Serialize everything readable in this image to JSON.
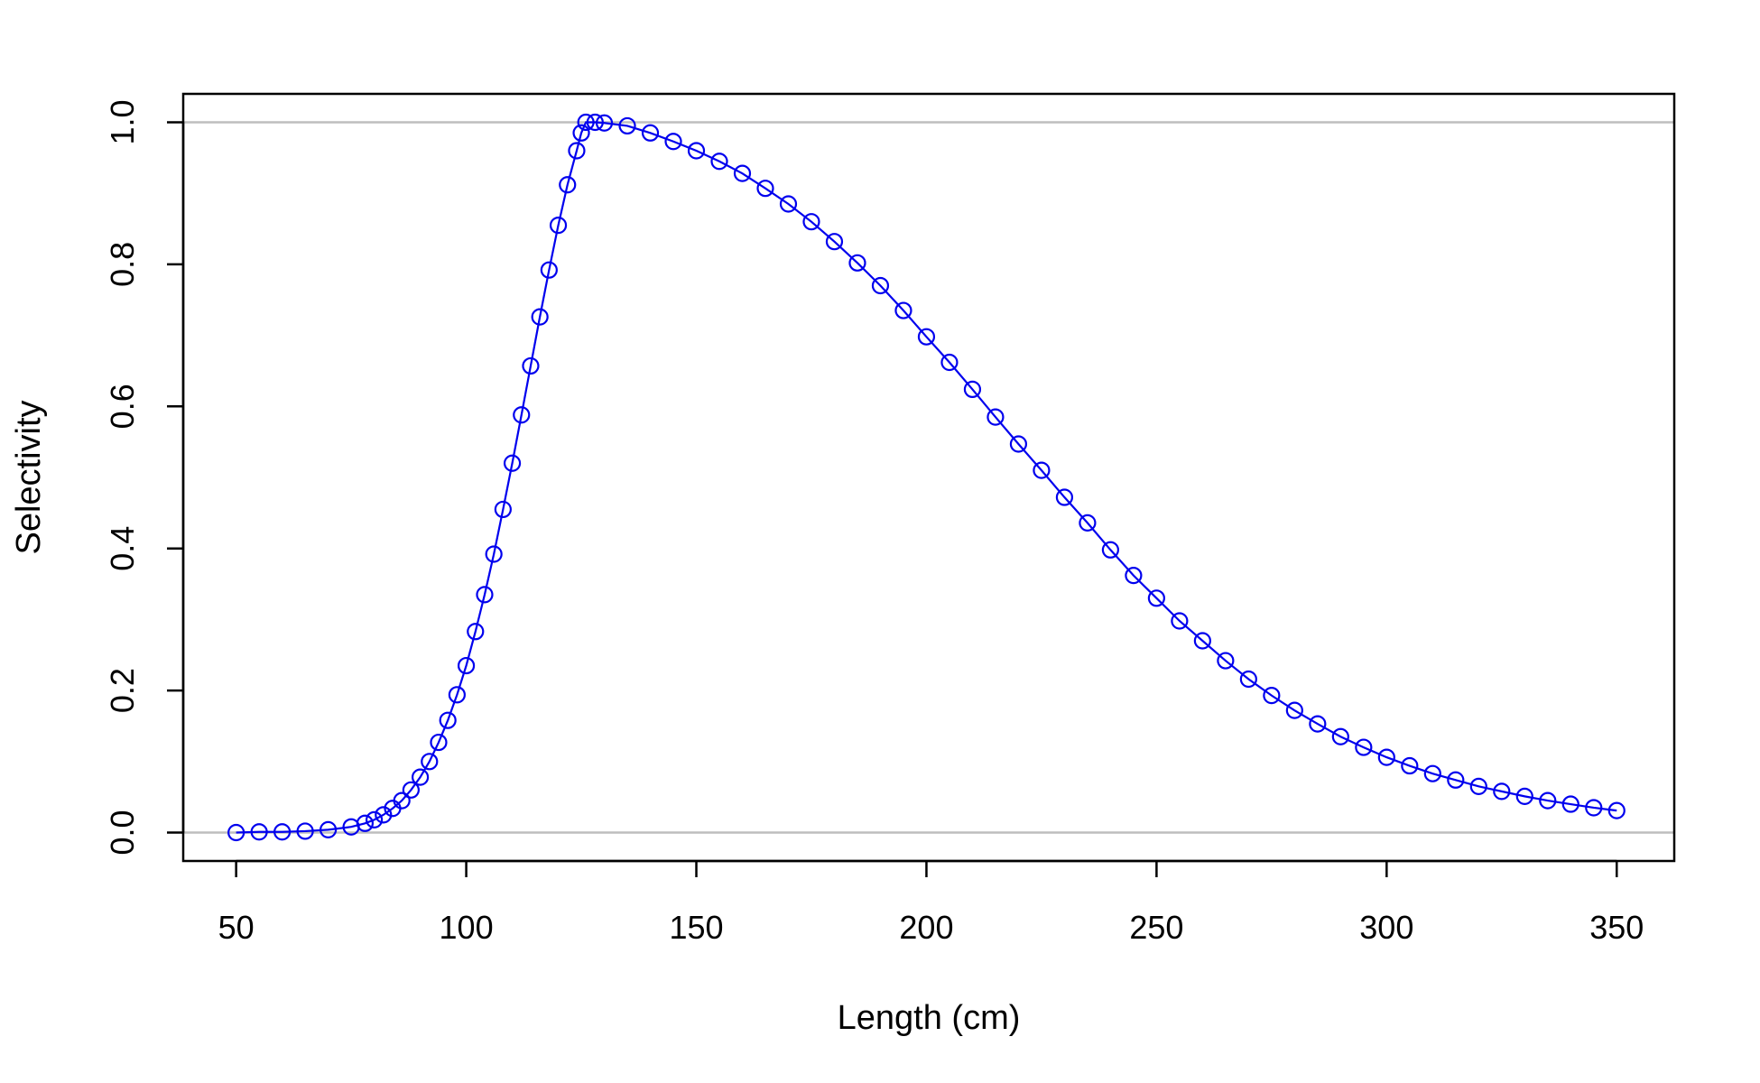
{
  "chart_data": {
    "type": "scatter",
    "title": "",
    "xlabel": "Length (cm)",
    "ylabel": "Selectivity",
    "xlim": [
      38.5,
      362.5
    ],
    "ylim": [
      -0.04,
      1.04
    ],
    "x_ticks": [
      50,
      100,
      150,
      200,
      250,
      300,
      350
    ],
    "x_tick_labels": [
      "50",
      "100",
      "150",
      "200",
      "250",
      "300",
      "350"
    ],
    "y_ticks": [
      0.0,
      0.2,
      0.4,
      0.6,
      0.8,
      1.0
    ],
    "y_tick_labels": [
      "0.0",
      "0.2",
      "0.4",
      "0.6",
      "0.8",
      "1.0"
    ],
    "reference_lines_y": [
      0,
      1
    ],
    "reference_line_color": "#bebebe",
    "grid": false,
    "legend": "none",
    "marker": "open-circle",
    "series_color": "#0000ee",
    "series": [
      {
        "points": [
          [
            50,
            0.0
          ],
          [
            55,
            0.001
          ],
          [
            60,
            0.001
          ],
          [
            65,
            0.002
          ],
          [
            70,
            0.004
          ],
          [
            75,
            0.008
          ],
          [
            78,
            0.013
          ],
          [
            80,
            0.018
          ],
          [
            82,
            0.025
          ],
          [
            84,
            0.034
          ],
          [
            86,
            0.045
          ],
          [
            88,
            0.06
          ],
          [
            90,
            0.078
          ],
          [
            92,
            0.1
          ],
          [
            94,
            0.127
          ],
          [
            96,
            0.158
          ],
          [
            98,
            0.194
          ],
          [
            100,
            0.235
          ],
          [
            102,
            0.283
          ],
          [
            104,
            0.335
          ],
          [
            106,
            0.392
          ],
          [
            108,
            0.455
          ],
          [
            110,
            0.52
          ],
          [
            112,
            0.588
          ],
          [
            114,
            0.657
          ],
          [
            116,
            0.726
          ],
          [
            118,
            0.792
          ],
          [
            120,
            0.855
          ],
          [
            122,
            0.912
          ],
          [
            124,
            0.96
          ],
          [
            125,
            0.985
          ],
          [
            126,
            1.0
          ],
          [
            128,
            1.0
          ],
          [
            130,
            0.999
          ],
          [
            135,
            0.995
          ],
          [
            140,
            0.985
          ],
          [
            145,
            0.973
          ],
          [
            150,
            0.96
          ],
          [
            155,
            0.945
          ],
          [
            160,
            0.928
          ],
          [
            165,
            0.907
          ],
          [
            170,
            0.885
          ],
          [
            175,
            0.86
          ],
          [
            180,
            0.832
          ],
          [
            185,
            0.802
          ],
          [
            190,
            0.77
          ],
          [
            195,
            0.735
          ],
          [
            200,
            0.698
          ],
          [
            205,
            0.662
          ],
          [
            210,
            0.624
          ],
          [
            215,
            0.585
          ],
          [
            220,
            0.547
          ],
          [
            225,
            0.51
          ],
          [
            230,
            0.472
          ],
          [
            235,
            0.436
          ],
          [
            240,
            0.398
          ],
          [
            245,
            0.362
          ],
          [
            250,
            0.33
          ],
          [
            255,
            0.298
          ],
          [
            260,
            0.27
          ],
          [
            265,
            0.242
          ],
          [
            270,
            0.216
          ],
          [
            275,
            0.193
          ],
          [
            280,
            0.172
          ],
          [
            285,
            0.153
          ],
          [
            290,
            0.135
          ],
          [
            295,
            0.12
          ],
          [
            300,
            0.106
          ],
          [
            305,
            0.094
          ],
          [
            310,
            0.083
          ],
          [
            315,
            0.074
          ],
          [
            320,
            0.065
          ],
          [
            325,
            0.058
          ],
          [
            330,
            0.051
          ],
          [
            335,
            0.045
          ],
          [
            340,
            0.04
          ],
          [
            345,
            0.035
          ],
          [
            350,
            0.031
          ]
        ]
      }
    ]
  }
}
